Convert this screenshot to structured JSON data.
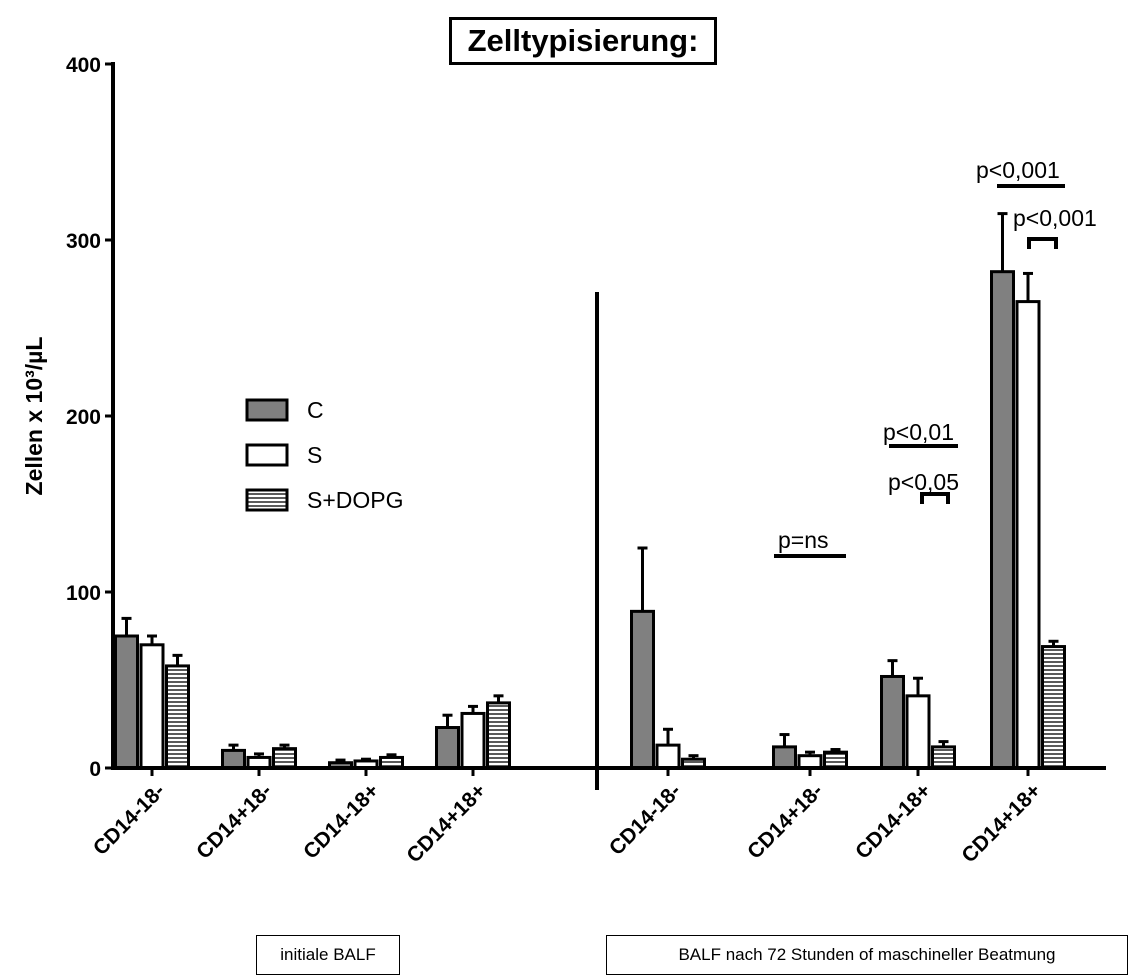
{
  "chart_data": {
    "type": "bar",
    "title": "Zelltypisierung:",
    "ylabel": "Zellen x 10³/µL",
    "ylim": [
      0,
      400
    ],
    "yticks": [
      0,
      100,
      200,
      300,
      400
    ],
    "groups": [
      {
        "note": "initiale BALF",
        "categories": [
          "CD14-18-",
          "CD14+18-",
          "CD14-18+",
          "CD14+18+"
        ]
      },
      {
        "note": "BALF nach 72 Stunden of maschineller Beatmung",
        "categories": [
          "CD14-18-",
          "CD14+18-",
          "CD14-18+",
          "CD14+18+"
        ]
      }
    ],
    "series": [
      {
        "name": "C",
        "fill": "#808080",
        "values": [
          75,
          10,
          3,
          23,
          89,
          12,
          52,
          282
        ],
        "errors": [
          10,
          3,
          1.5,
          7,
          36,
          7,
          9,
          33
        ]
      },
      {
        "name": "S",
        "fill": "#ffffff",
        "values": [
          70,
          6,
          4,
          31,
          13,
          7,
          41,
          265
        ],
        "errors": [
          5,
          2,
          1,
          4,
          9,
          2,
          10,
          16
        ]
      },
      {
        "name": "S+DOPG",
        "fill": "hatch",
        "values": [
          58,
          11,
          6,
          37,
          5,
          9,
          12,
          69
        ],
        "errors": [
          6,
          2,
          1.5,
          4,
          2,
          1.5,
          3,
          3
        ]
      }
    ],
    "annotations": [
      "p=ns",
      "p<0,01",
      "p<0,05",
      "p<0,001",
      "p<0,001"
    ],
    "legend_position": "center-left"
  }
}
